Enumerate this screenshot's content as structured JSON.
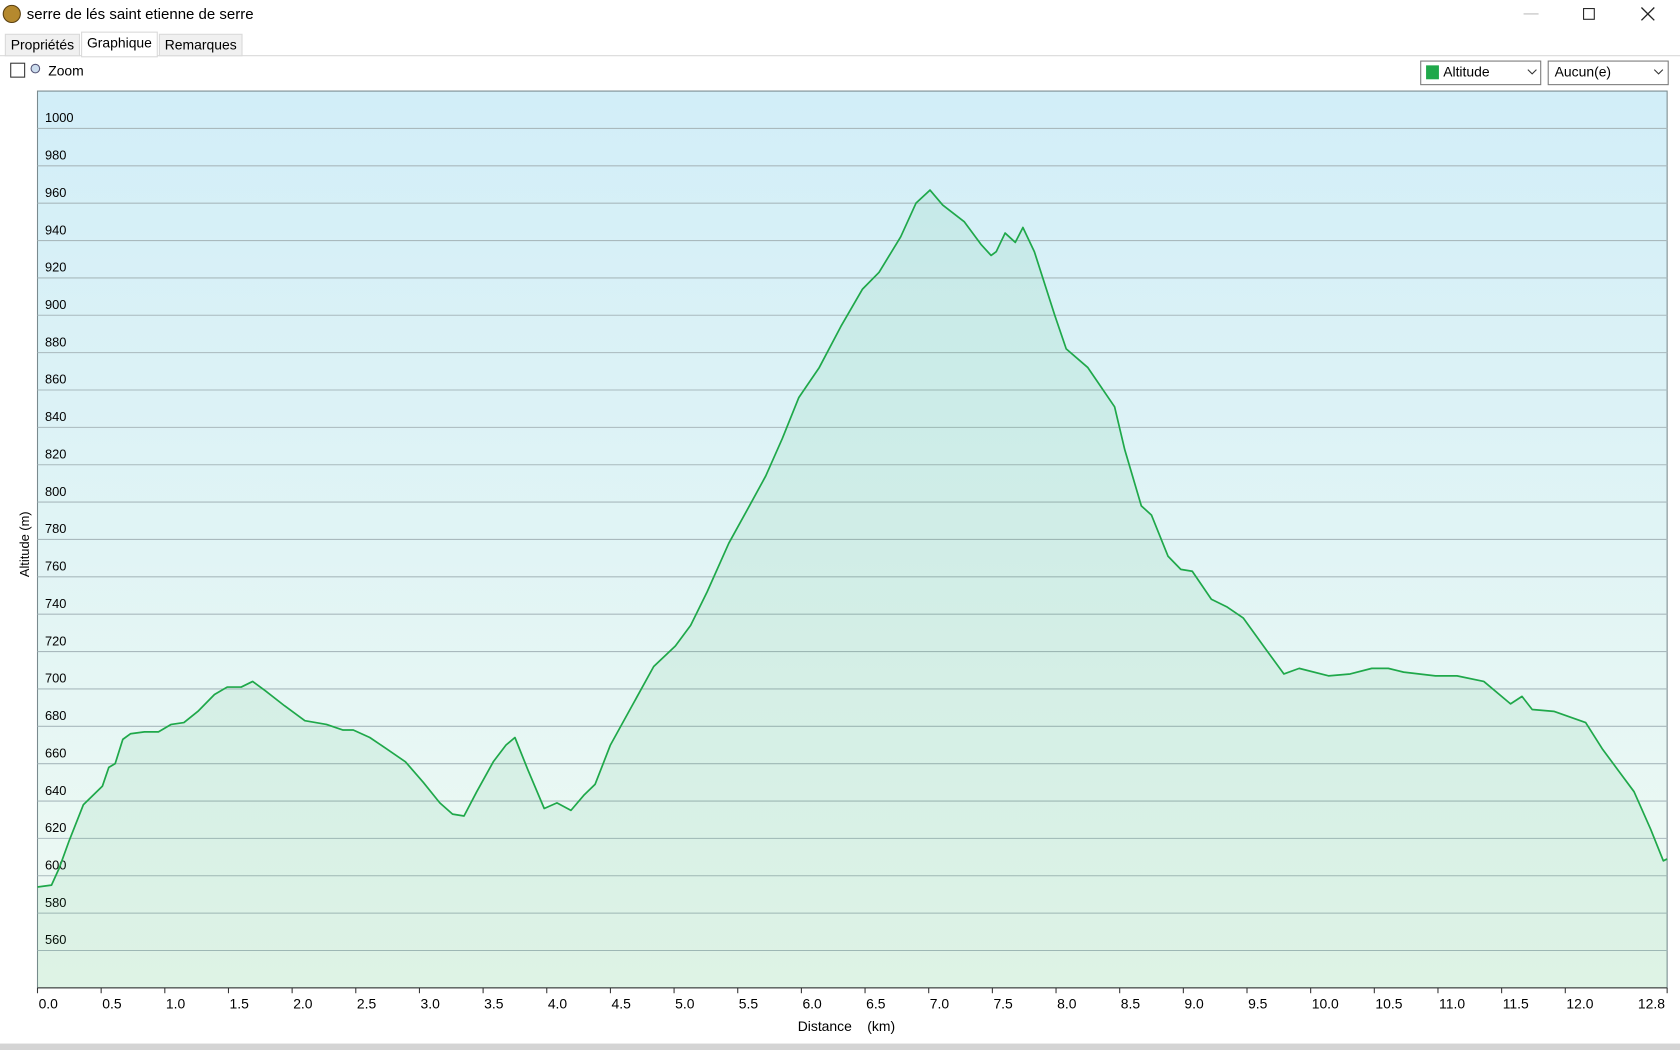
{
  "window": {
    "title": "serre de lés saint etienne de serre"
  },
  "tabs": [
    "Propriétés",
    "Graphique",
    "Remarques"
  ],
  "zoom": "Zoom",
  "selector2": "Aucun(e)",
  "chart_data": {
    "type": "line",
    "xlabel": "Distance    (km)",
    "ylabel": "Altitude (m)",
    "x": [
      0,
      0.11,
      0.17,
      0.25,
      0.36,
      0.51,
      0.56,
      0.61,
      0.67,
      0.73,
      0.84,
      0.95,
      1.05,
      1.15,
      1.26,
      1.39,
      1.49,
      1.6,
      1.69,
      1.79,
      1.94,
      2.1,
      2.27,
      2.4,
      2.48,
      2.61,
      2.74,
      2.89,
      3.03,
      3.16,
      3.26,
      3.35,
      3.45,
      3.58,
      3.68,
      3.75,
      3.85,
      3.98,
      4.08,
      4.19,
      4.29,
      4.38,
      4.5,
      4.67,
      4.84,
      5.01,
      5.13,
      5.26,
      5.43,
      5.6,
      5.72,
      5.85,
      5.98,
      6.14,
      6.31,
      6.48,
      6.61,
      6.78,
      6.9,
      7.01,
      7.11,
      7.28,
      7.41,
      7.49,
      7.53,
      7.6,
      7.68,
      7.74,
      7.83,
      7.99,
      8.08,
      8.25,
      8.46,
      8.54,
      8.67,
      8.75,
      8.88,
      8.98,
      9.07,
      9.22,
      9.34,
      9.47,
      9.64,
      9.79,
      9.91,
      10.14,
      10.31,
      10.48,
      10.61,
      10.73,
      10.98,
      11.15,
      11.36,
      11.57,
      11.66,
      11.74,
      11.91,
      12.16,
      12.29,
      12.42,
      12.54,
      12.67,
      12.77,
      12.8
    ],
    "series": [
      {
        "name": "Altitude",
        "color": "#1fa84a",
        "values": [
          594,
          595,
          604,
          619,
          638,
          648,
          658,
          660,
          673,
          676,
          677,
          677,
          681,
          682,
          688,
          697,
          701,
          701,
          704,
          699,
          691,
          683,
          681,
          678,
          678,
          674,
          668,
          661,
          650,
          639,
          633,
          632,
          645,
          661,
          670,
          674,
          657,
          636,
          639,
          635,
          643,
          649,
          670,
          691,
          712,
          723,
          734,
          752,
          778,
          799,
          814,
          834,
          856,
          872,
          894,
          914,
          923,
          942,
          960,
          967,
          959,
          950,
          938,
          932,
          934,
          944,
          939,
          947,
          934,
          900,
          882,
          872,
          851,
          828,
          798,
          793,
          771,
          764,
          763,
          748,
          744,
          738,
          722,
          708,
          711,
          707,
          708,
          711,
          711,
          709,
          707,
          707,
          704,
          692,
          696,
          689,
          688,
          682,
          668,
          656,
          645,
          625,
          608,
          609
        ]
      }
    ],
    "xlim": [
      0,
      12.8
    ],
    "ylim": [
      540,
      1020
    ],
    "xticks": [
      {
        "value": 0,
        "label": "0.0"
      },
      0.5,
      {
        "value": 1,
        "label": "1.0"
      },
      1.5,
      {
        "value": 2,
        "label": "2.0"
      },
      2.5,
      {
        "value": 3,
        "label": "3.0"
      },
      3.5,
      {
        "value": 4,
        "label": "4.0"
      },
      4.5,
      {
        "value": 5,
        "label": "5.0"
      },
      5.5,
      {
        "value": 6,
        "label": "6.0"
      },
      6.5,
      {
        "value": 7,
        "label": "7.0"
      },
      7.5,
      {
        "value": 8,
        "label": "8.0"
      },
      8.5,
      {
        "value": 9,
        "label": "9.0"
      },
      9.5,
      {
        "value": 10,
        "label": "10.0"
      },
      10.5,
      {
        "value": 11,
        "label": "11.0"
      },
      11.5,
      {
        "value": 12,
        "label": "12.0"
      },
      12.8
    ],
    "yticks": [
      560,
      580,
      600,
      620,
      640,
      660,
      680,
      700,
      720,
      740,
      760,
      780,
      800,
      820,
      840,
      860,
      880,
      900,
      920,
      940,
      960,
      980,
      1000
    ],
    "grid": true
  }
}
